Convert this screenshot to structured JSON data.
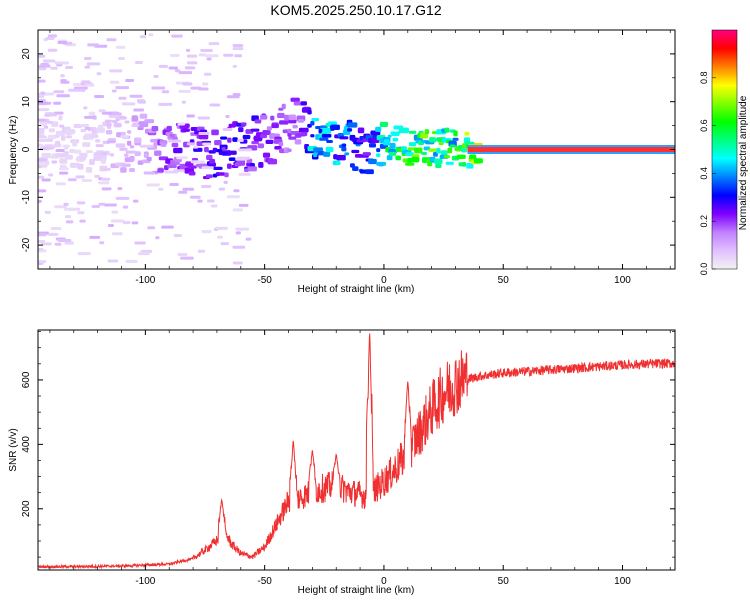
{
  "title": "KOM5.2025.250.10.17.G12",
  "chart_data": [
    {
      "type": "heatmap",
      "title": "KOM5.2025.250.10.17.G12",
      "xlabel": "Height of straight line (km)",
      "ylabel": "Frequency (Hz)",
      "xlim": [
        -145,
        122
      ],
      "ylim": [
        -25,
        25
      ],
      "xticks": [
        -100,
        -50,
        0,
        50,
        100
      ],
      "yticks": [
        -20,
        -10,
        0,
        10,
        20
      ],
      "xtick_labels": [
        "-100",
        "-50",
        "0",
        "50",
        "100"
      ],
      "ytick_labels": [
        "-20",
        "-10",
        "0",
        "10",
        "20"
      ],
      "colorbar": {
        "label": "Normalized spectral amplitude",
        "range": [
          0.0,
          1.0
        ],
        "ticks": [
          0.0,
          0.2,
          0.4,
          0.6,
          0.8
        ],
        "tick_labels": [
          "0.0",
          "0.2",
          "0.4",
          "0.6",
          "0.8"
        ],
        "colormap": [
          "#f2f2f2",
          "#e0c0ff",
          "#c080ff",
          "#7f00ff",
          "#0000ff",
          "#0080ff",
          "#00ffff",
          "#00ff80",
          "#00ff00",
          "#80ff00",
          "#ffff00",
          "#ff8000",
          "#ff0000",
          "#ff0080"
        ]
      },
      "ridge": {
        "x": [
          -120,
          -100,
          -90,
          -80,
          -70,
          -60,
          -50,
          -45,
          -40,
          -35,
          -30,
          -25,
          -20,
          -15,
          -10,
          -5,
          0,
          5,
          10,
          20,
          30,
          40,
          60,
          80,
          100,
          120
        ],
        "y": [
          1.5,
          1.5,
          0.0,
          -0.5,
          -0.5,
          0.5,
          2.0,
          3.5,
          4.5,
          5.5,
          2.5,
          2.0,
          1.5,
          1.0,
          -0.5,
          -1.0,
          1.0,
          1.0,
          0.5,
          0.3,
          0.2,
          0.0,
          0.0,
          0.0,
          0.0,
          0.0
        ],
        "amplitude": [
          0.05,
          0.15,
          0.22,
          0.25,
          0.3,
          0.28,
          0.25,
          0.22,
          0.2,
          0.2,
          0.45,
          0.5,
          0.45,
          0.4,
          0.35,
          0.35,
          0.55,
          0.6,
          0.65,
          0.65,
          0.6,
          0.8,
          0.82,
          0.85,
          0.88,
          0.9
        ]
      }
    },
    {
      "type": "line",
      "xlabel": "Height of straight line (km)",
      "ylabel": "SNR (v/v)",
      "xlim": [
        -145,
        122
      ],
      "ylim": [
        10,
        755
      ],
      "xticks": [
        -100,
        -50,
        0,
        50,
        100
      ],
      "yticks": [
        200,
        400,
        600
      ],
      "xtick_labels": [
        "-100",
        "-50",
        "0",
        "50",
        "100"
      ],
      "ytick_labels": [
        "200",
        "400",
        "600"
      ],
      "color": "#f03030",
      "series": [
        {
          "name": "SNR",
          "x": [
            -145,
            -130,
            -110,
            -90,
            -80,
            -75,
            -70,
            -67,
            -64,
            -60,
            -55,
            -50,
            -45,
            -40,
            -35,
            -30,
            -25,
            -20,
            -15,
            -10,
            -6,
            -3,
            0,
            5,
            10,
            15,
            20,
            25,
            30,
            35,
            40,
            50,
            60,
            70,
            80,
            90,
            100,
            110,
            122
          ],
          "y": [
            20,
            20,
            22,
            28,
            45,
            70,
            100,
            130,
            90,
            60,
            50,
            80,
            150,
            220,
            230,
            250,
            260,
            270,
            250,
            240,
            230,
            260,
            280,
            320,
            370,
            430,
            500,
            550,
            580,
            600,
            610,
            620,
            625,
            630,
            635,
            640,
            645,
            648,
            650
          ],
          "spikes": [
            {
              "x": -68,
              "y": 230
            },
            {
              "x": -38,
              "y": 415
            },
            {
              "x": -30,
              "y": 385
            },
            {
              "x": -20,
              "y": 370
            },
            {
              "x": -6,
              "y": 755
            },
            {
              "x": 10,
              "y": 600
            }
          ]
        }
      ]
    }
  ]
}
